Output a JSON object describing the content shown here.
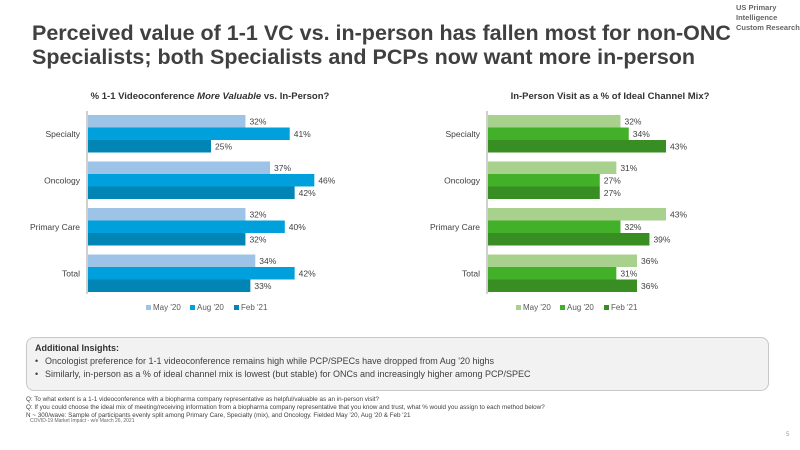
{
  "brand": {
    "line1": "US Primary Intelligence",
    "line2": "Custom Research"
  },
  "title": "Perceived value of 1-1 VC vs. in-person has fallen most for non-ONC Specialists; both Specialists and PCPs now want more in-person",
  "chart_data": [
    {
      "type": "bar",
      "orientation": "horizontal",
      "title_parts": {
        "pre": "% 1-1 Videoconference ",
        "italic": "More Valuable",
        "post": " vs. In-Person?"
      },
      "title": "% 1-1 Videoconference More Valuable vs. In-Person?",
      "categories": [
        "Specialty",
        "Oncology",
        "Primary Care",
        "Total"
      ],
      "series": [
        {
          "name": "May '20",
          "color": "#9DC3E6",
          "values": [
            32,
            37,
            32,
            34
          ]
        },
        {
          "name": "Aug '20",
          "color": "#00A0DC",
          "values": [
            41,
            46,
            40,
            42
          ]
        },
        {
          "name": "Feb '21",
          "color": "#0085B5",
          "values": [
            25,
            42,
            32,
            33
          ]
        }
      ],
      "value_suffix": "%",
      "xlim": [
        0,
        55
      ],
      "grid": false,
      "legend": "bottom"
    },
    {
      "type": "bar",
      "orientation": "horizontal",
      "title_parts": {
        "pre": "In-Person Visit as a % of Ideal Channel Mix?",
        "italic": "",
        "post": ""
      },
      "title": "In-Person Visit as a % of Ideal Channel Mix?",
      "categories": [
        "Specialty",
        "Oncology",
        "Primary Care",
        "Total"
      ],
      "series": [
        {
          "name": "May '20",
          "color": "#A9D18E",
          "values": [
            32,
            31,
            43,
            36
          ]
        },
        {
          "name": "Aug '20",
          "color": "#43B02A",
          "values": [
            34,
            27,
            32,
            31
          ]
        },
        {
          "name": "Feb '21",
          "color": "#388E23",
          "values": [
            43,
            27,
            39,
            36
          ]
        }
      ],
      "value_suffix": "%",
      "xlim": [
        0,
        55
      ],
      "grid": false,
      "legend": "bottom"
    }
  ],
  "insights": {
    "title": "Additional Insights:",
    "bullet": "•",
    "items": [
      "Oncologist preference for 1-1 videoconference remains high while PCP/SPECs have dropped from Aug '20 highs",
      "Similarly, in-person as a % of ideal channel mix is lowest (but stable) for ONCs and increasingly higher among PCP/SPEC"
    ]
  },
  "footnotes": [
    "Q: To what extent is a 1-1 videoconference with a biopharma company representative as helpful/valuable as an in-person visit?",
    "Q: If you could choose the ideal mix of meeting/receiving information from a biopharma company representative that you know and trust, what % would you assign to each method below?",
    "N ~ 300/wave: Sample of participants evenly split among Primary Care, Specialty (mix), and Oncology. Fielded May '20, Aug '20 & Feb '21"
  ],
  "footer": {
    "left": "COVID-19 Market Impact - w/e March 26, 2021",
    "page": "5"
  }
}
